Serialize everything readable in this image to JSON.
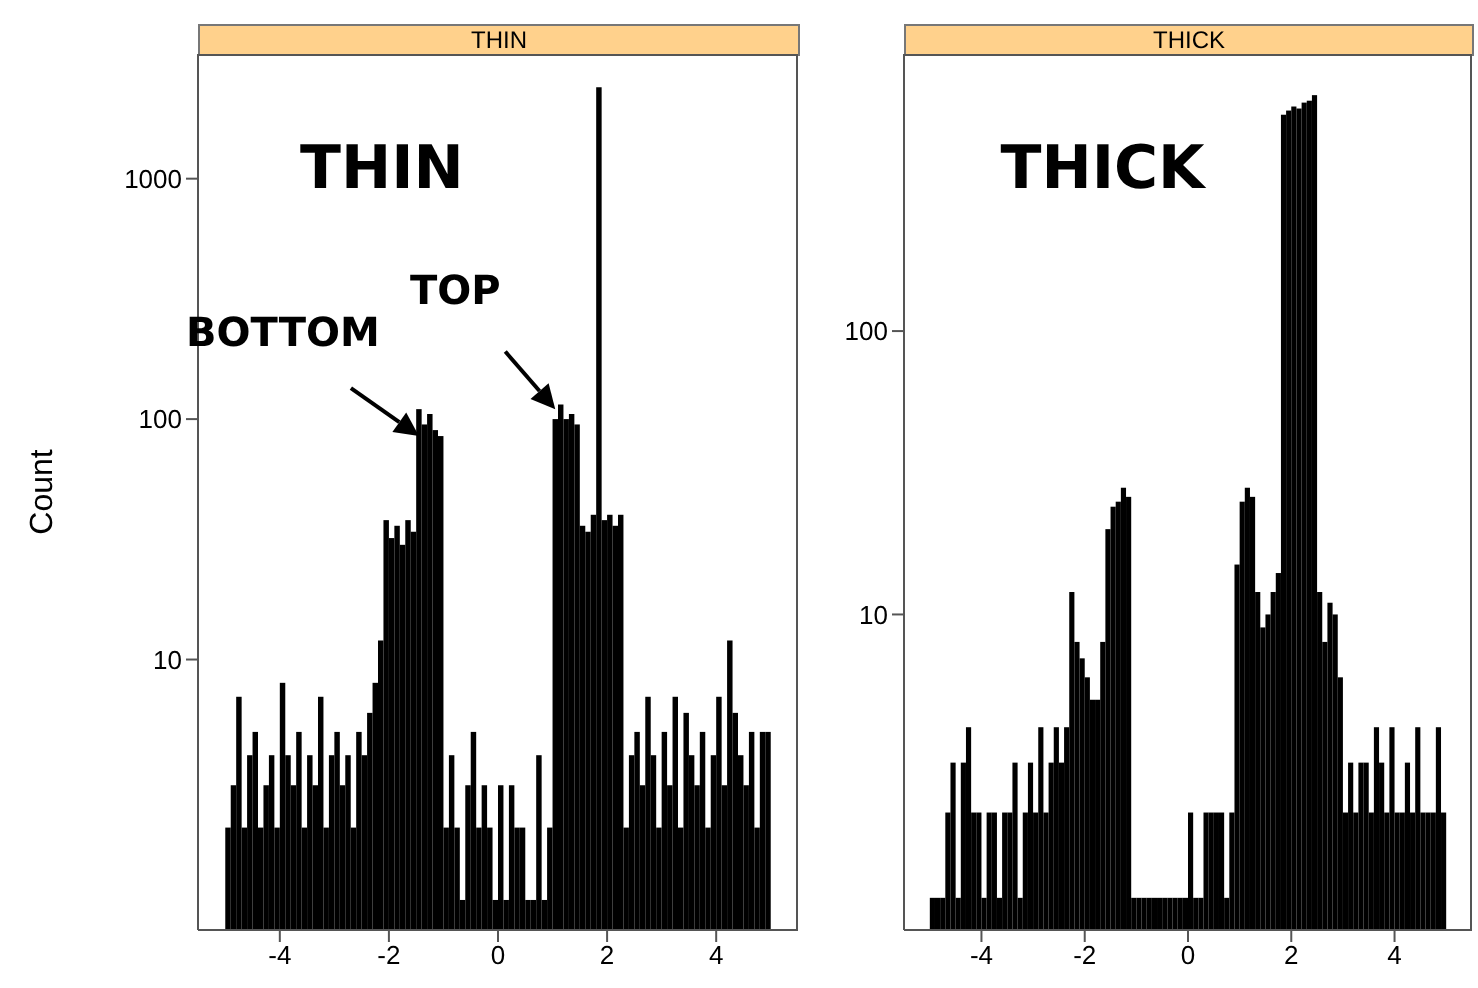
{
  "chart_data": [
    {
      "type": "histogram",
      "title": "THIN",
      "ylabel": "Count",
      "log": "y",
      "color": "#000000",
      "annotations": [
        "THIN",
        {
          "text": "BOTTOM",
          "x": -1.45,
          "y": 85
        },
        {
          "text": "TOP",
          "x": 1.05,
          "y": 110
        }
      ],
      "bins": [
        -5,
        -4.9,
        -4.8,
        -4.7,
        -4.6,
        -4.5,
        -4.4,
        -4.3,
        -4.2,
        -4.1,
        -4,
        -3.9,
        -3.8,
        -3.7,
        -3.6,
        -3.5,
        -3.4,
        -3.3,
        -3.2,
        -3.1,
        -3,
        -2.9,
        -2.8,
        -2.7,
        -2.6,
        -2.5,
        -2.4,
        -2.3,
        -2.2,
        -2.1,
        -2,
        -1.9,
        -1.8,
        -1.7,
        -1.6,
        -1.5,
        -1.4,
        -1.3,
        -1.2,
        -1.1,
        -1,
        -0.9,
        -0.8,
        -0.7,
        -0.6,
        -0.5,
        -0.4,
        -0.3,
        -0.2,
        -0.1,
        0,
        0.1,
        0.2,
        0.3,
        0.4,
        0.5,
        0.6,
        0.7,
        0.8,
        0.9,
        1,
        1.1,
        1.2,
        1.3,
        1.4,
        1.5,
        1.6,
        1.7,
        1.8,
        1.9,
        2,
        2.1,
        2.2,
        2.3,
        2.4,
        2.5,
        2.6,
        2.7,
        2.8,
        2.9,
        3,
        3.1,
        3.2,
        3.3,
        3.4,
        3.5,
        3.6,
        3.7,
        3.8,
        3.9,
        4,
        4.1,
        4.2,
        4.3,
        4.4,
        4.5,
        4.6,
        4.7,
        4.8,
        4.9,
        5
      ],
      "values": [
        2,
        3,
        7,
        2,
        4,
        5,
        2,
        3,
        4,
        2,
        8,
        4,
        3,
        5,
        2,
        4,
        3,
        7,
        2,
        4,
        5,
        3,
        4,
        2,
        5,
        4,
        6,
        8,
        12,
        38,
        32,
        36,
        30,
        38,
        34,
        110,
        95,
        105,
        90,
        85,
        2,
        4,
        2,
        1,
        3,
        5,
        2,
        3,
        2,
        1,
        3,
        1,
        3,
        2,
        2,
        1,
        1,
        4,
        1,
        2,
        100,
        115,
        100,
        105,
        95,
        36,
        34,
        40,
        2400,
        38,
        40,
        36,
        40,
        2,
        4,
        5,
        3,
        7,
        4,
        2,
        5,
        3,
        7,
        2,
        6,
        4,
        3,
        5,
        2,
        4,
        7,
        3,
        12,
        6,
        4,
        3,
        5,
        2,
        5,
        5
      ],
      "xlim": [
        -5.5,
        5.5
      ],
      "xticks": [
        -4,
        -2,
        0,
        2,
        4
      ],
      "ylim": [
        0.75,
        3300
      ],
      "yticks": [
        10,
        100,
        1000
      ]
    },
    {
      "type": "histogram",
      "title": "THICK",
      "log": "y",
      "color": "#000000",
      "annotations": [
        "THICK"
      ],
      "bins": [
        -5,
        -4.9,
        -4.8,
        -4.7,
        -4.6,
        -4.5,
        -4.4,
        -4.3,
        -4.2,
        -4.1,
        -4,
        -3.9,
        -3.8,
        -3.7,
        -3.6,
        -3.5,
        -3.4,
        -3.3,
        -3.2,
        -3.1,
        -3,
        -2.9,
        -2.8,
        -2.7,
        -2.6,
        -2.5,
        -2.4,
        -2.3,
        -2.2,
        -2.1,
        -2,
        -1.9,
        -1.8,
        -1.7,
        -1.6,
        -1.5,
        -1.4,
        -1.3,
        -1.2,
        -1.1,
        -1,
        -0.9,
        -0.8,
        -0.7,
        -0.6,
        -0.5,
        -0.4,
        -0.3,
        -0.2,
        -0.1,
        0,
        0.1,
        0.2,
        0.3,
        0.4,
        0.5,
        0.6,
        0.7,
        0.8,
        0.9,
        1,
        1.1,
        1.2,
        1.3,
        1.4,
        1.5,
        1.6,
        1.7,
        1.8,
        1.9,
        2,
        2.1,
        2.2,
        2.3,
        2.4,
        2.5,
        2.6,
        2.7,
        2.8,
        2.9,
        3,
        3.1,
        3.2,
        3.3,
        3.4,
        3.5,
        3.6,
        3.7,
        3.8,
        3.9,
        4,
        4.1,
        4.2,
        4.3,
        4.4,
        4.5,
        4.6,
        4.7,
        4.8,
        4.9,
        5
      ],
      "values": [
        1,
        1,
        1,
        2,
        3,
        1,
        3,
        4,
        2,
        2,
        1,
        2,
        2,
        1,
        2,
        2,
        3,
        1,
        2,
        3,
        2,
        4,
        2,
        3,
        4,
        3,
        4,
        12,
        8,
        7,
        6,
        5,
        5,
        8,
        20,
        24,
        25,
        28,
        26,
        1,
        1,
        1,
        1,
        1,
        1,
        1,
        1,
        1,
        1,
        1,
        2,
        1,
        1,
        2,
        2,
        2,
        2,
        1,
        2,
        15,
        25,
        28,
        26,
        12,
        9,
        10,
        12,
        14,
        580,
        600,
        620,
        610,
        640,
        650,
        680,
        12,
        8,
        11,
        10,
        6,
        2,
        3,
        2,
        3,
        3,
        2,
        4,
        3,
        2,
        4,
        2,
        2,
        3,
        2,
        4,
        2,
        2,
        2,
        4,
        2
      ],
      "xlim": [
        -5.5,
        5.5
      ],
      "xticks": [
        -4,
        -2,
        0,
        2,
        4
      ],
      "ylim": [
        0.77,
        950
      ],
      "yticks": [
        10,
        100
      ]
    }
  ]
}
